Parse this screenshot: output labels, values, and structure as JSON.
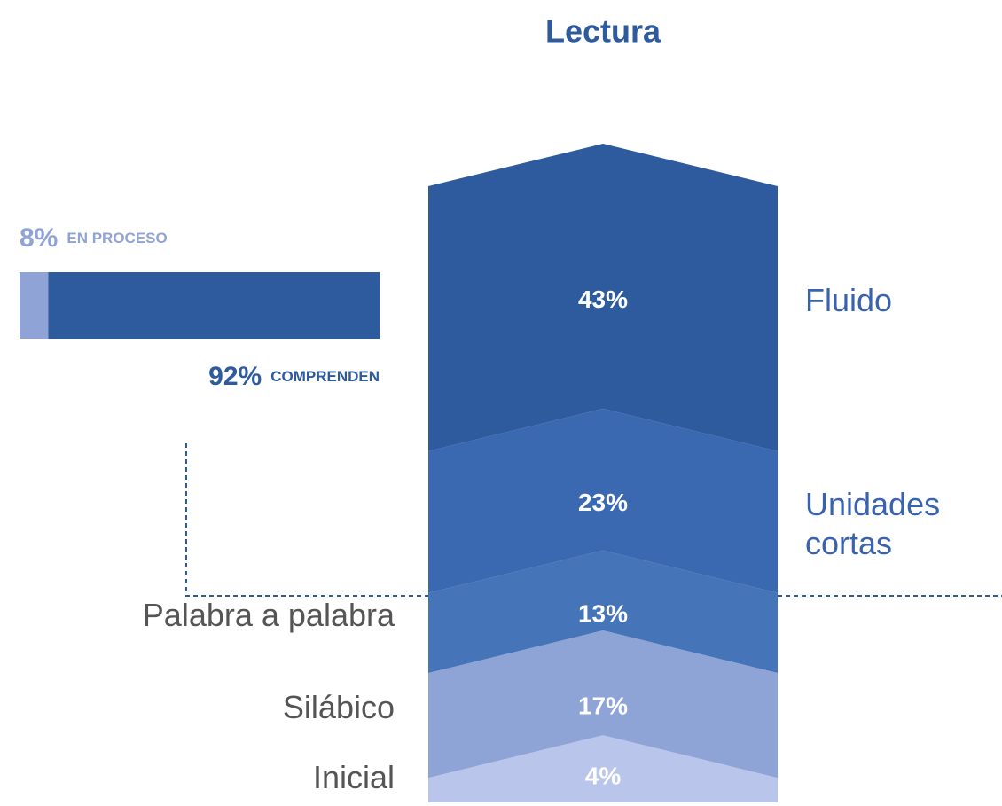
{
  "chart_data": [
    {
      "type": "chevron",
      "title": "Lectura",
      "categories": [
        "Inicial",
        "Silábico",
        "Palabra a palabra",
        "Unidades cortas",
        "Fluido"
      ],
      "values": [
        4,
        17,
        13,
        23,
        43
      ],
      "value_labels": [
        "4%",
        "17%",
        "13%",
        "23%",
        "43%"
      ],
      "colors": [
        "#b9c5ea",
        "#8ea3d6",
        "#4574b9",
        "#3a68b1",
        "#2e5a9e"
      ],
      "ylim": [
        0,
        100
      ]
    },
    {
      "type": "hbar",
      "xlim": [
        0,
        100
      ],
      "series": [
        {
          "name": "EN PROCESO",
          "color": "#8fa3d6",
          "values": [
            8
          ],
          "value_labels": [
            "8%"
          ]
        },
        {
          "name": "COMPRENDEN",
          "color": "#2e5a9e",
          "values": [
            92
          ],
          "value_labels": [
            "92%"
          ]
        }
      ]
    }
  ]
}
